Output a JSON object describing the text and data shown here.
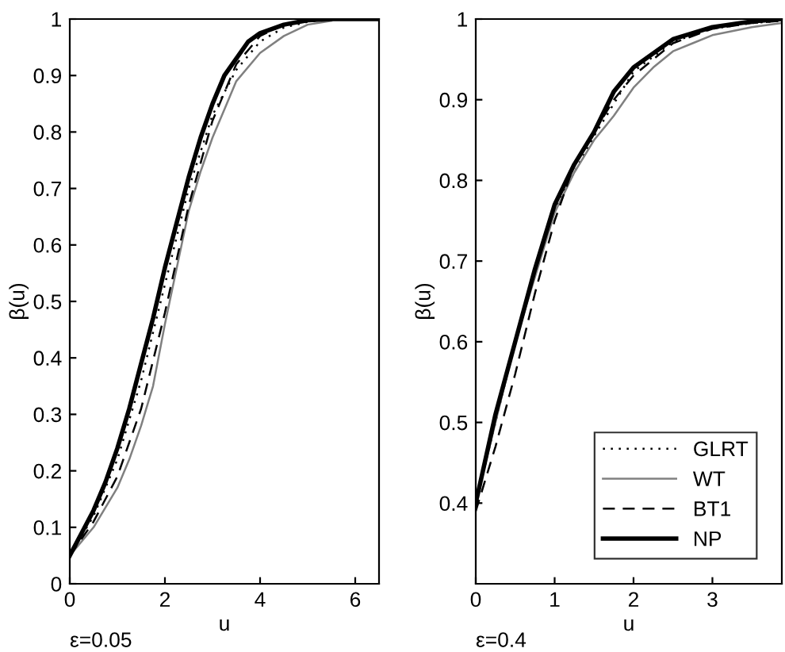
{
  "chart_data": [
    {
      "type": "line",
      "xlabel": "u",
      "ylabel": "β(u)",
      "annotations": [
        "ε=0.05"
      ],
      "xlim": [
        0,
        6.5
      ],
      "ylim": [
        0,
        1
      ],
      "xticks": [
        0,
        2,
        4,
        6
      ],
      "yticks": [
        0,
        0.1,
        0.2,
        0.3,
        0.4,
        0.5,
        0.6,
        0.7,
        0.8,
        0.9,
        1
      ],
      "grid": false,
      "legend": false,
      "marker": "none",
      "series": [
        {
          "color": "#000000",
          "line_style": "dotted",
          "x": [
            0,
            0.5,
            1,
            1.5,
            2,
            2.5,
            3,
            3.5,
            4,
            4.5,
            5,
            5.5
          ],
          "values": [
            0.05,
            0.12,
            0.22,
            0.36,
            0.53,
            0.7,
            0.83,
            0.91,
            0.96,
            0.985,
            0.995,
            1
          ]
        },
        {
          "color": "#808080",
          "line_style": "solid",
          "x": [
            0,
            0.5,
            1,
            1.25,
            1.5,
            1.75,
            2,
            2.25,
            2.5,
            2.75,
            3,
            3.25,
            3.5,
            4,
            4.5,
            5,
            5.5
          ],
          "values": [
            0.05,
            0.1,
            0.17,
            0.22,
            0.28,
            0.35,
            0.46,
            0.56,
            0.66,
            0.73,
            0.79,
            0.84,
            0.89,
            0.94,
            0.97,
            0.99,
            0.997
          ]
        },
        {
          "color": "#000000",
          "line_style": "dashed",
          "x": [
            0,
            0.5,
            1,
            1.5,
            2,
            2.5,
            3,
            3.5,
            4,
            4.5,
            5
          ],
          "values": [
            0.05,
            0.11,
            0.19,
            0.31,
            0.48,
            0.67,
            0.82,
            0.92,
            0.97,
            0.99,
            1
          ]
        },
        {
          "color": "#000000",
          "line_style": "solid",
          "x": [
            0,
            0.25,
            0.5,
            0.75,
            1,
            1.25,
            1.5,
            1.75,
            2,
            2.25,
            2.5,
            2.75,
            3,
            3.25,
            3.5,
            3.75,
            4,
            4.5,
            5,
            5.5,
            6.5
          ],
          "values": [
            0.05,
            0.09,
            0.13,
            0.18,
            0.24,
            0.31,
            0.39,
            0.47,
            0.56,
            0.64,
            0.72,
            0.79,
            0.85,
            0.9,
            0.93,
            0.96,
            0.975,
            0.99,
            0.998,
            1,
            1
          ]
        }
      ]
    },
    {
      "type": "line",
      "xlabel": "u",
      "ylabel": "β(u)",
      "annotations": [
        "ε=0.4"
      ],
      "xlim": [
        0,
        3.88
      ],
      "ylim": [
        0.3,
        1
      ],
      "xticks": [
        0,
        1,
        2,
        3
      ],
      "yticks": [
        0.4,
        0.5,
        0.6,
        0.7,
        0.8,
        0.9,
        1
      ],
      "grid": false,
      "legend": "bottom right",
      "marker": "none",
      "series": [
        {
          "name": "GLRT",
          "color": "#000000",
          "line_style": "dotted",
          "x": [
            0,
            0.5,
            1,
            1.5,
            2,
            2.5,
            3,
            3.5,
            3.88
          ],
          "values": [
            0.4,
            0.6,
            0.765,
            0.855,
            0.935,
            0.972,
            0.988,
            0.995,
            0.998
          ]
        },
        {
          "name": "WT",
          "color": "#808080",
          "line_style": "solid",
          "x": [
            0,
            0.5,
            1,
            1.25,
            1.5,
            1.75,
            2,
            2.25,
            2.5,
            2.75,
            3,
            3.5,
            3.88
          ],
          "values": [
            0.4,
            0.6,
            0.76,
            0.81,
            0.85,
            0.88,
            0.915,
            0.94,
            0.96,
            0.97,
            0.98,
            0.99,
            0.995
          ]
        },
        {
          "name": "BT1",
          "color": "#000000",
          "line_style": "dashed",
          "x": [
            0,
            0.25,
            0.5,
            0.75,
            1,
            1.25,
            1.5,
            1.75,
            2,
            2.5,
            3,
            3.5,
            3.88
          ],
          "values": [
            0.39,
            0.47,
            0.56,
            0.66,
            0.75,
            0.82,
            0.86,
            0.9,
            0.93,
            0.97,
            0.988,
            0.995,
            0.998
          ]
        },
        {
          "name": "NP",
          "color": "#000000",
          "line_style": "solid",
          "x": [
            0,
            0.25,
            0.5,
            0.75,
            1,
            1.25,
            1.5,
            1.75,
            2,
            2.5,
            3,
            3.5,
            3.88
          ],
          "values": [
            0.4,
            0.51,
            0.6,
            0.69,
            0.77,
            0.82,
            0.86,
            0.91,
            0.94,
            0.975,
            0.99,
            0.997,
            1
          ]
        }
      ]
    }
  ]
}
